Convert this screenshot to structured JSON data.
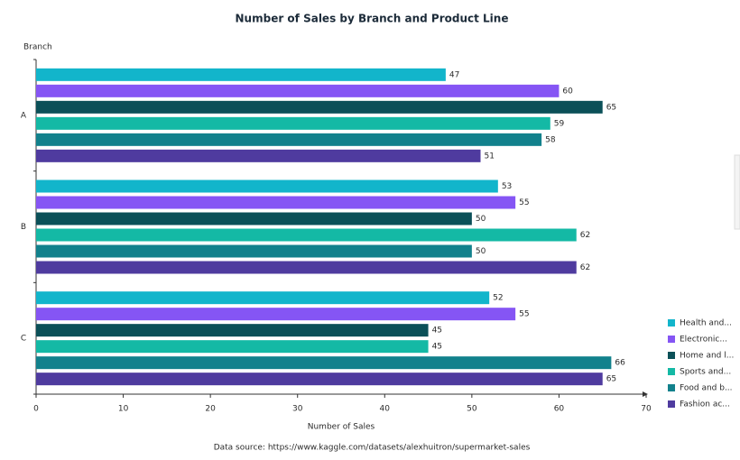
{
  "chart_data": {
    "type": "bar",
    "orientation": "horizontal",
    "title": "Number of Sales by Branch and Product Line",
    "y_label": "Branch",
    "x_label": "Number of Sales",
    "source": "Data source: https://www.kaggle.com/datasets/alexhuitron/supermarket-sales",
    "categories": [
      "A",
      "B",
      "C"
    ],
    "series": [
      {
        "name": "Health and...",
        "color": "#12b5cb",
        "values": [
          47,
          53,
          52
        ]
      },
      {
        "name": "Electronic...",
        "color": "#8555f4",
        "values": [
          60,
          55,
          55
        ]
      },
      {
        "name": "Home and l...",
        "color": "#0b5058",
        "values": [
          65,
          50,
          45
        ]
      },
      {
        "name": "Sports and...",
        "color": "#14b9a5",
        "values": [
          59,
          62,
          45
        ]
      },
      {
        "name": "Food and b...",
        "color": "#12818c",
        "values": [
          58,
          50,
          66
        ]
      },
      {
        "name": "Fashion ac...",
        "color": "#4f3b9f",
        "values": [
          51,
          62,
          65
        ]
      }
    ],
    "xlim": [
      0,
      70
    ],
    "xticks": [
      0,
      10,
      20,
      30,
      40,
      50,
      60,
      70
    ],
    "grid": false,
    "legend": "bottom-right"
  }
}
